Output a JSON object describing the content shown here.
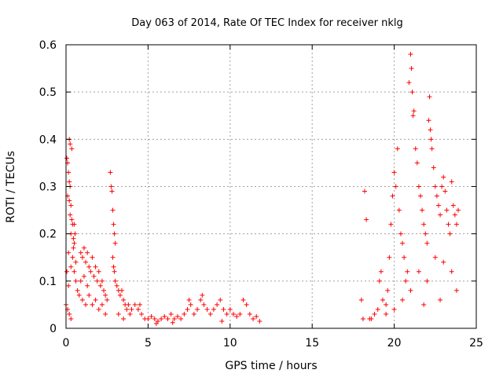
{
  "chart_data": {
    "type": "scatter",
    "title": "Day 063 of 2014, Rate Of TEC Index for receiver nklg",
    "xlabel": "GPS time / hours",
    "ylabel": "ROTI / TECUs",
    "xlim": [
      0,
      25
    ],
    "ylim": [
      0,
      0.6
    ],
    "x_ticks": [
      "0",
      "5",
      "10",
      "15",
      "20",
      "25"
    ],
    "y_ticks": [
      "0",
      "0.1",
      "0.2",
      "0.3",
      "0.4",
      "0.5",
      "0.6"
    ],
    "grid": true,
    "legend": "none",
    "marker": "plus",
    "color": "#ff0000",
    "points": [
      [
        0.05,
        0.36
      ],
      [
        0.1,
        0.35
      ],
      [
        0.15,
        0.33
      ],
      [
        0.2,
        0.31
      ],
      [
        0.25,
        0.3
      ],
      [
        0.1,
        0.28
      ],
      [
        0.2,
        0.27
      ],
      [
        0.3,
        0.26
      ],
      [
        0.25,
        0.24
      ],
      [
        0.35,
        0.23
      ],
      [
        0.4,
        0.22
      ],
      [
        0.3,
        0.2
      ],
      [
        0.45,
        0.19
      ],
      [
        0.5,
        0.18
      ],
      [
        0.2,
        0.4
      ],
      [
        0.25,
        0.39
      ],
      [
        0.35,
        0.38
      ],
      [
        0.15,
        0.16
      ],
      [
        0.4,
        0.15
      ],
      [
        0.3,
        0.13
      ],
      [
        0.5,
        0.12
      ],
      [
        0.6,
        0.1
      ],
      [
        0.7,
        0.08
      ],
      [
        0.8,
        0.07
      ],
      [
        0.5,
        0.22
      ],
      [
        0.55,
        0.2
      ],
      [
        0.45,
        0.17
      ],
      [
        0.6,
        0.14
      ],
      [
        0.0,
        0.05
      ],
      [
        0.1,
        0.04
      ],
      [
        0.2,
        0.03
      ],
      [
        0.3,
        0.02
      ],
      [
        0.05,
        0.12
      ],
      [
        0.15,
        0.09
      ],
      [
        0.9,
        0.16
      ],
      [
        1.0,
        0.15
      ],
      [
        1.1,
        0.17
      ],
      [
        1.2,
        0.14
      ],
      [
        1.3,
        0.16
      ],
      [
        1.4,
        0.13
      ],
      [
        1.5,
        0.12
      ],
      [
        1.6,
        0.15
      ],
      [
        1.7,
        0.11
      ],
      [
        1.8,
        0.13
      ],
      [
        1.9,
        0.1
      ],
      [
        2.0,
        0.12
      ],
      [
        2.1,
        0.09
      ],
      [
        2.2,
        0.1
      ],
      [
        2.3,
        0.08
      ],
      [
        2.4,
        0.07
      ],
      [
        2.5,
        0.06
      ],
      [
        1.0,
        0.06
      ],
      [
        1.2,
        0.05
      ],
      [
        1.4,
        0.07
      ],
      [
        1.6,
        0.05
      ],
      [
        1.8,
        0.06
      ],
      [
        2.0,
        0.04
      ],
      [
        2.2,
        0.05
      ],
      [
        2.4,
        0.03
      ],
      [
        0.9,
        0.1
      ],
      [
        1.1,
        0.11
      ],
      [
        1.3,
        0.09
      ],
      [
        2.7,
        0.33
      ],
      [
        2.75,
        0.3
      ],
      [
        2.8,
        0.29
      ],
      [
        2.85,
        0.25
      ],
      [
        2.9,
        0.22
      ],
      [
        2.95,
        0.2
      ],
      [
        3.0,
        0.18
      ],
      [
        2.85,
        0.15
      ],
      [
        2.9,
        0.13
      ],
      [
        2.95,
        0.12
      ],
      [
        3.0,
        0.1
      ],
      [
        3.1,
        0.09
      ],
      [
        3.2,
        0.08
      ],
      [
        3.3,
        0.07
      ],
      [
        3.4,
        0.08
      ],
      [
        3.5,
        0.06
      ],
      [
        3.6,
        0.05
      ],
      [
        3.7,
        0.04
      ],
      [
        3.8,
        0.05
      ],
      [
        3.9,
        0.03
      ],
      [
        4.0,
        0.04
      ],
      [
        4.2,
        0.05
      ],
      [
        4.4,
        0.04
      ],
      [
        4.5,
        0.05
      ],
      [
        4.6,
        0.03
      ],
      [
        4.8,
        0.02
      ],
      [
        3.2,
        0.03
      ],
      [
        3.5,
        0.02
      ],
      [
        5.0,
        0.02
      ],
      [
        5.2,
        0.025
      ],
      [
        5.4,
        0.02
      ],
      [
        5.6,
        0.015
      ],
      [
        5.8,
        0.02
      ],
      [
        6.0,
        0.025
      ],
      [
        6.2,
        0.02
      ],
      [
        6.4,
        0.03
      ],
      [
        6.6,
        0.02
      ],
      [
        6.8,
        0.025
      ],
      [
        7.0,
        0.02
      ],
      [
        7.2,
        0.03
      ],
      [
        7.4,
        0.04
      ],
      [
        7.5,
        0.06
      ],
      [
        7.6,
        0.05
      ],
      [
        7.8,
        0.03
      ],
      [
        8.0,
        0.04
      ],
      [
        8.2,
        0.06
      ],
      [
        8.3,
        0.07
      ],
      [
        8.4,
        0.05
      ],
      [
        8.6,
        0.04
      ],
      [
        8.8,
        0.03
      ],
      [
        9.0,
        0.04
      ],
      [
        9.2,
        0.05
      ],
      [
        9.4,
        0.06
      ],
      [
        9.6,
        0.04
      ],
      [
        9.8,
        0.03
      ],
      [
        10.0,
        0.04
      ],
      [
        10.2,
        0.03
      ],
      [
        10.4,
        0.025
      ],
      [
        10.6,
        0.03
      ],
      [
        10.8,
        0.06
      ],
      [
        11.0,
        0.05
      ],
      [
        11.2,
        0.03
      ],
      [
        11.4,
        0.02
      ],
      [
        11.6,
        0.025
      ],
      [
        11.8,
        0.015
      ],
      [
        5.5,
        0.01
      ],
      [
        6.5,
        0.012
      ],
      [
        9.5,
        0.015
      ],
      [
        18.0,
        0.06
      ],
      [
        18.1,
        0.02
      ],
      [
        18.2,
        0.29
      ],
      [
        18.3,
        0.23
      ],
      [
        18.5,
        0.02
      ],
      [
        18.8,
        0.03
      ],
      [
        19.0,
        0.04
      ],
      [
        19.1,
        0.1
      ],
      [
        19.2,
        0.12
      ],
      [
        19.3,
        0.06
      ],
      [
        19.5,
        0.05
      ],
      [
        19.6,
        0.08
      ],
      [
        19.7,
        0.15
      ],
      [
        19.8,
        0.22
      ],
      [
        19.9,
        0.28
      ],
      [
        20.0,
        0.33
      ],
      [
        20.1,
        0.3
      ],
      [
        20.2,
        0.38
      ],
      [
        20.3,
        0.25
      ],
      [
        20.4,
        0.2
      ],
      [
        20.5,
        0.18
      ],
      [
        20.6,
        0.15
      ],
      [
        20.7,
        0.1
      ],
      [
        20.8,
        0.12
      ],
      [
        20.9,
        0.52
      ],
      [
        21.0,
        0.58
      ],
      [
        21.05,
        0.55
      ],
      [
        21.1,
        0.5
      ],
      [
        21.15,
        0.45
      ],
      [
        21.2,
        0.46
      ],
      [
        21.3,
        0.38
      ],
      [
        21.4,
        0.35
      ],
      [
        21.5,
        0.3
      ],
      [
        21.6,
        0.28
      ],
      [
        21.7,
        0.25
      ],
      [
        21.8,
        0.22
      ],
      [
        21.9,
        0.2
      ],
      [
        22.0,
        0.18
      ],
      [
        22.1,
        0.44
      ],
      [
        22.15,
        0.49
      ],
      [
        22.2,
        0.42
      ],
      [
        22.25,
        0.4
      ],
      [
        22.3,
        0.38
      ],
      [
        22.4,
        0.34
      ],
      [
        22.5,
        0.3
      ],
      [
        22.6,
        0.28
      ],
      [
        22.7,
        0.26
      ],
      [
        22.8,
        0.24
      ],
      [
        22.9,
        0.3
      ],
      [
        23.0,
        0.32
      ],
      [
        23.1,
        0.29
      ],
      [
        23.2,
        0.25
      ],
      [
        23.3,
        0.22
      ],
      [
        23.4,
        0.2
      ],
      [
        23.5,
        0.31
      ],
      [
        23.6,
        0.26
      ],
      [
        23.7,
        0.24
      ],
      [
        23.8,
        0.22
      ],
      [
        23.9,
        0.25
      ],
      [
        20.5,
        0.06
      ],
      [
        21.0,
        0.08
      ],
      [
        21.5,
        0.12
      ],
      [
        22.0,
        0.1
      ],
      [
        22.5,
        0.15
      ],
      [
        23.0,
        0.14
      ],
      [
        23.5,
        0.12
      ],
      [
        23.8,
        0.08
      ],
      [
        22.8,
        0.06
      ],
      [
        21.8,
        0.05
      ],
      [
        19.5,
        0.03
      ],
      [
        18.6,
        0.02
      ],
      [
        20.0,
        0.04
      ]
    ]
  }
}
